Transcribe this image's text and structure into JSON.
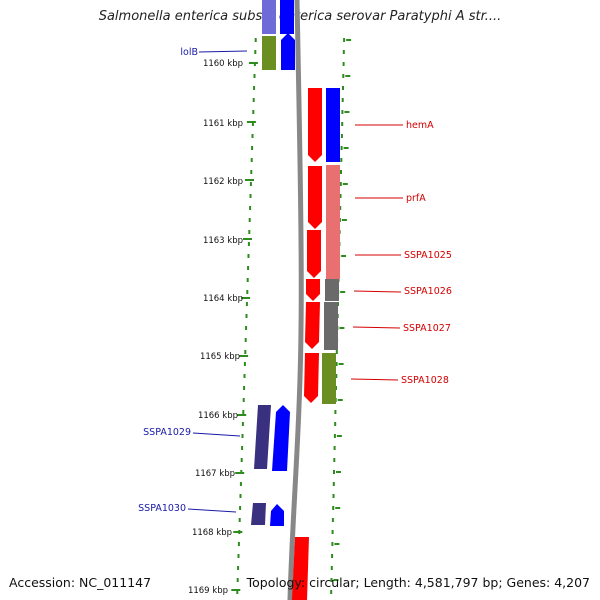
{
  "map": {
    "title": "Salmonella enterica subsp. enterica serovar Paratyphi A str....",
    "footer": {
      "accession": "Accession: NC_011147",
      "summary": "Topology: circular; Length: 4,581,797 bp; Genes: 4,207"
    },
    "scale_labels": [
      "1160 kbp",
      "1161 kbp",
      "1162 kbp",
      "1163 kbp",
      "1164 kbp",
      "1165 kbp",
      "1166 kbp",
      "1167 kbp",
      "1168 kbp",
      "1169 kbp"
    ],
    "colors": {
      "scale_dots": "#2e8b1e",
      "backbone": "#888888",
      "red": "#ff0000",
      "red_light": "#e87070",
      "blue": "#0000ff",
      "navy": "#3a3080",
      "olive": "#6b8e23",
      "gray": "#6a6a6a",
      "label_blue": "#1a1aa8",
      "label_red": "#d40000"
    },
    "left_labels": [
      "lolB",
      "SSPA1029",
      "SSPA1030"
    ],
    "right_labels": [
      "hemA",
      "prfA",
      "SSPA1025",
      "SSPA1026",
      "SSPA1027",
      "SSPA1028"
    ]
  }
}
